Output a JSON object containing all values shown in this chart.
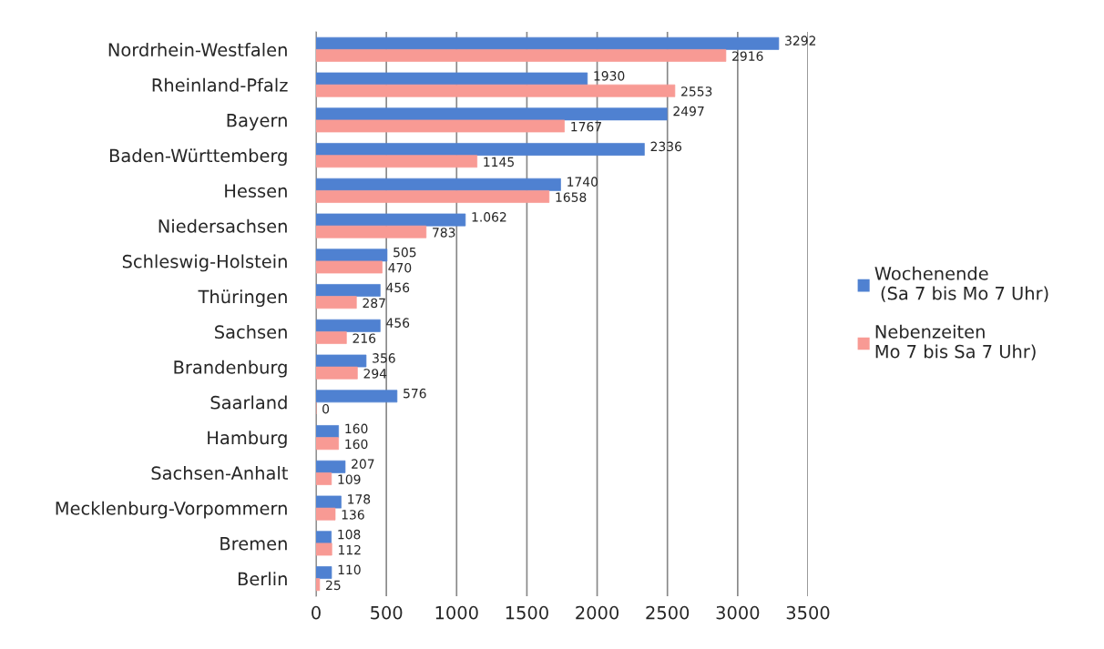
{
  "chart_data": {
    "type": "bar",
    "orientation": "horizontal",
    "categories": [
      "Nordrhein-Westfalen",
      "Rheinland-Pfalz",
      "Bayern",
      "Baden-Württemberg",
      "Hessen",
      "Niedersachsen",
      "Schleswig-Holstein",
      "Thüringen",
      "Sachsen",
      "Brandenburg",
      "Saarland",
      "Hamburg",
      "Sachsen-Anhalt",
      "Mecklenburg-Vorpommern",
      "Bremen",
      "Berlin"
    ],
    "series": [
      {
        "name": "Wochenende\n (Sa 7 bis Mo 7 Uhr)",
        "color": "#4f81d1",
        "values": [
          3292,
          1930,
          2497,
          2336,
          1740,
          1062,
          505,
          456,
          456,
          356,
          576,
          160,
          207,
          178,
          108,
          110
        ],
        "value_labels": [
          "3292",
          "1930",
          "2497",
          "2336",
          "1740",
          "1.062",
          "505",
          "456",
          "456",
          "356",
          "576",
          "160",
          "207",
          "178",
          "108",
          "110"
        ]
      },
      {
        "name": "Nebenzeiten\nMo 7 bis Sa 7 Uhr)",
        "color": "#f89a94",
        "values": [
          2916,
          2553,
          1767,
          1145,
          1658,
          783,
          470,
          287,
          216,
          294,
          0,
          160,
          109,
          136,
          112,
          25
        ],
        "value_labels": [
          "2916",
          "2553",
          "1767",
          "1145",
          "1658",
          "783",
          "470",
          "287",
          "216",
          "294",
          "0",
          "160",
          "109",
          "136",
          "112",
          "25"
        ]
      }
    ],
    "xlim": [
      0,
      3500
    ],
    "xticks": [
      0,
      500,
      1000,
      1500,
      2000,
      2500,
      3000,
      3500
    ],
    "grid": "x",
    "legend": "right"
  }
}
